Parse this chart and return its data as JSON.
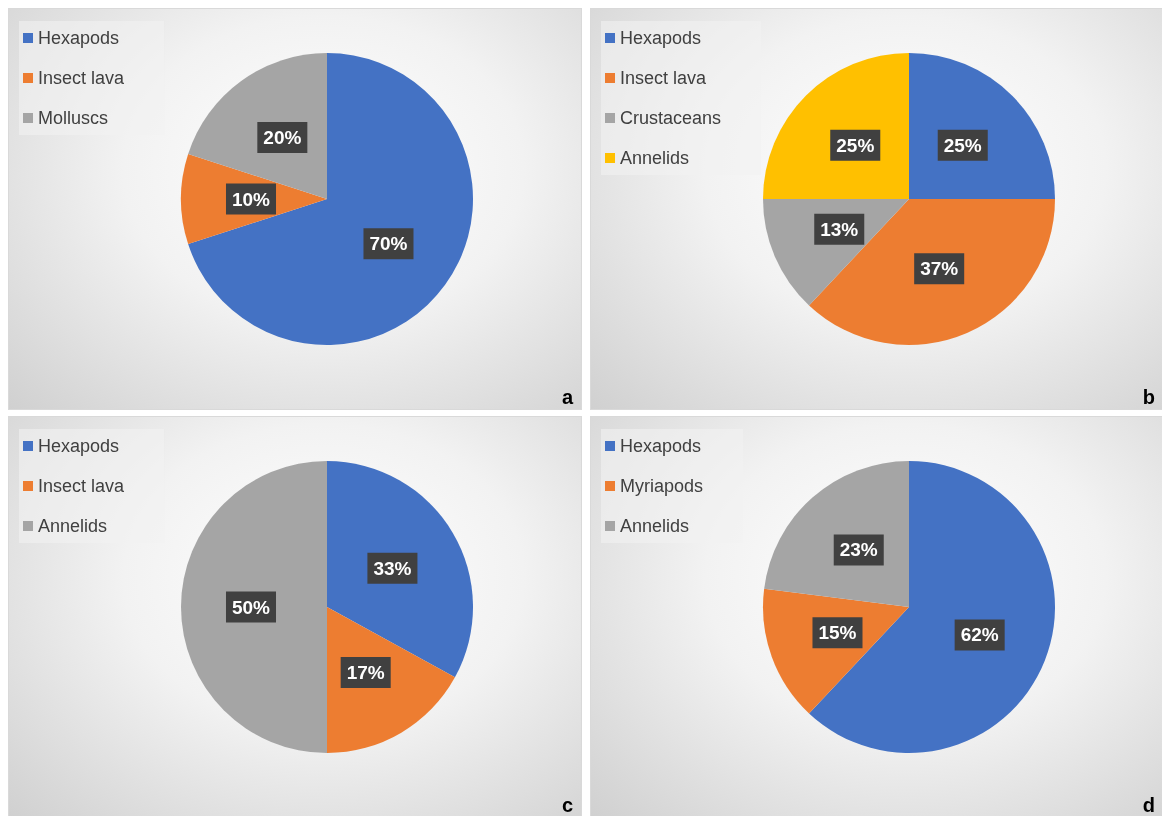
{
  "chart_data": [
    {
      "type": "pie",
      "categories": [
        "Hexapods",
        "Insect lava",
        "Molluscs"
      ],
      "values": [
        70,
        10,
        20
      ],
      "colors": [
        "#4472c4",
        "#ed7d31",
        "#a5a5a5"
      ],
      "value_labels": [
        "70%",
        "10%",
        "20%"
      ],
      "legend": "top left",
      "annotations": [
        "a"
      ]
    },
    {
      "type": "pie",
      "categories": [
        "Hexapods",
        "Insect lava",
        "Crustaceans",
        "Annelids"
      ],
      "values": [
        25,
        37,
        13,
        25
      ],
      "colors": [
        "#4472c4",
        "#ed7d31",
        "#a5a5a5",
        "#ffc000"
      ],
      "value_labels": [
        "25%",
        "37%",
        "13%",
        "25%"
      ],
      "legend": "top left",
      "annotations": [
        "b"
      ]
    },
    {
      "type": "pie",
      "categories": [
        "Hexapods",
        "Insect lava",
        "Annelids"
      ],
      "values": [
        33,
        17,
        50
      ],
      "colors": [
        "#4472c4",
        "#ed7d31",
        "#a5a5a5"
      ],
      "value_labels": [
        "33%",
        "17%",
        "50%"
      ],
      "legend": "top left",
      "annotations": [
        "c"
      ]
    },
    {
      "type": "pie",
      "categories": [
        "Hexapods",
        "Myriapods",
        "Annelids"
      ],
      "values": [
        62,
        15,
        23
      ],
      "colors": [
        "#4472c4",
        "#ed7d31",
        "#a5a5a5"
      ],
      "value_labels": [
        "62%",
        "15%",
        "23%"
      ],
      "legend": "top left",
      "annotations": [
        "d"
      ]
    }
  ]
}
